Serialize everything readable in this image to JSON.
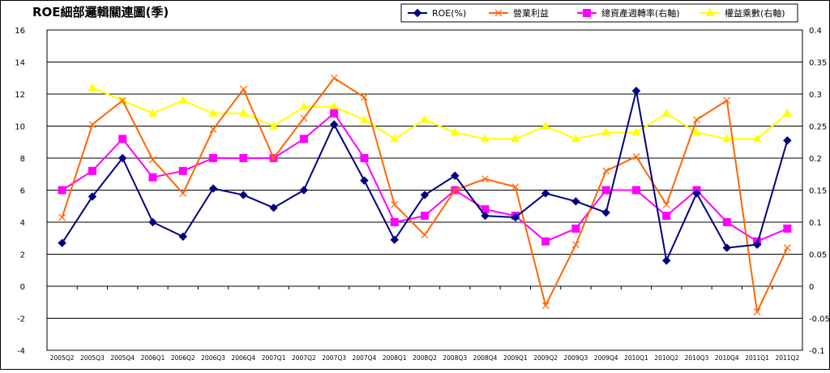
{
  "chart_data": {
    "type": "line",
    "title": "ROE細部邏輯關連圖(季)",
    "categories": [
      "2005Q2",
      "2005Q3",
      "2005Q4",
      "2006Q1",
      "2006Q2",
      "2006Q3",
      "2006Q4",
      "2007Q1",
      "2007Q2",
      "2007Q3",
      "2007Q4",
      "2008Q1",
      "2008Q2",
      "2008Q3",
      "2008Q4",
      "2009Q1",
      "2009Q2",
      "2009Q3",
      "2009Q4",
      "2010Q1",
      "2010Q2",
      "2010Q3",
      "2010Q4",
      "2011Q1",
      "2011Q2"
    ],
    "y_left": {
      "ylim": [
        -4,
        16
      ],
      "ticks": [
        "-4",
        "-2",
        "0",
        "2",
        "4",
        "6",
        "8",
        "10",
        "12",
        "14",
        "16"
      ]
    },
    "y_right": {
      "ylim": [
        -0.1,
        0.4
      ],
      "ticks": [
        "-0.1",
        "-0.05",
        "0",
        "0.05",
        "0.1",
        "0.15",
        "0.2",
        "0.25",
        "0.3",
        "0.35",
        "0.4"
      ]
    },
    "grid": true,
    "legend_position": "top",
    "series": [
      {
        "name": "ROE(%)",
        "axis": "left",
        "color": "#000080",
        "marker": "diamond",
        "values": [
          2.7,
          5.6,
          8.0,
          4.0,
          3.1,
          6.1,
          5.7,
          4.9,
          6.0,
          10.1,
          6.6,
          2.9,
          5.7,
          6.9,
          4.4,
          4.3,
          5.8,
          5.3,
          4.6,
          12.2,
          1.6,
          5.8,
          2.4,
          2.6,
          9.1
        ]
      },
      {
        "name": "營業利益",
        "axis": "left",
        "color": "#FF6600",
        "marker": "x",
        "values": [
          4.3,
          10.1,
          11.6,
          7.9,
          5.8,
          9.8,
          12.3,
          8.0,
          10.5,
          13.0,
          11.8,
          5.1,
          3.2,
          6.0,
          6.7,
          6.2,
          -1.2,
          2.6,
          7.2,
          8.1,
          5.1,
          10.4,
          11.6,
          -1.6,
          2.4
        ]
      },
      {
        "name": "總資產週轉率(右軸)",
        "axis": "right",
        "color": "#FF00FF",
        "marker": "square",
        "values": [
          0.15,
          0.18,
          0.23,
          0.17,
          0.18,
          0.2,
          0.2,
          0.2,
          0.23,
          0.27,
          0.2,
          0.1,
          0.11,
          0.15,
          0.12,
          0.11,
          0.07,
          0.09,
          0.15,
          0.15,
          0.11,
          0.15,
          0.1,
          0.07,
          0.09
        ]
      },
      {
        "name": "權益乘數(右軸)",
        "axis": "right",
        "color": "#FFFF00",
        "marker": "triangle",
        "values": [
          null,
          0.31,
          0.29,
          0.27,
          0.29,
          0.27,
          0.27,
          0.25,
          0.28,
          0.28,
          0.26,
          0.23,
          0.26,
          0.24,
          0.23,
          0.23,
          0.25,
          0.23,
          0.24,
          0.24,
          0.27,
          0.24,
          0.23,
          0.23,
          0.27
        ]
      }
    ]
  }
}
